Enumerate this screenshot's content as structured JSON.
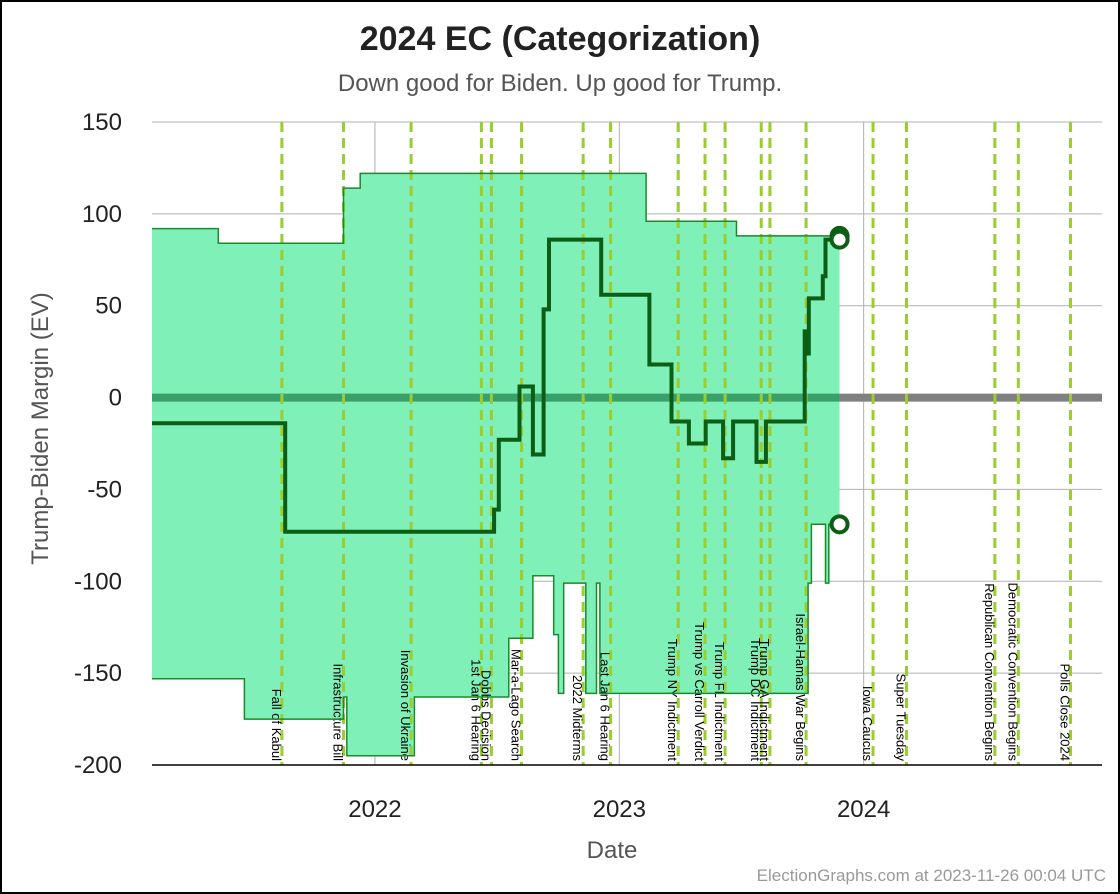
{
  "page": {
    "title": "2024 EC (Categorization)",
    "subtitle": "Down good for Biden. Up good for Trump.",
    "credit": "ElectionGraphs.com at 2023-11-26 00:04 UTC"
  },
  "chart_data": {
    "type": "line",
    "title": "2024 EC (Categorization)",
    "subtitle": "Down good for Biden. Up good for Trump.",
    "xlabel": "Date",
    "ylabel": "Trump-Biden Margin (EV)",
    "xlim": [
      "2021-02-02",
      "2024-12-22"
    ],
    "ylim": [
      -200,
      150
    ],
    "x_ticks": [
      {
        "label": "2022",
        "x": "2022-01-01"
      },
      {
        "label": "2023",
        "x": "2023-01-01"
      },
      {
        "label": "2024",
        "x": "2024-01-01"
      }
    ],
    "y_ticks": [
      150,
      100,
      50,
      0,
      -50,
      -100,
      -150,
      -200
    ],
    "grid": true,
    "zero_line_color": "#808080",
    "colors": {
      "band_fill": "#7ff0b8",
      "band_edge": "#1a8a2a",
      "center_line": "#0b5e14",
      "event_line": "#9acd32",
      "grid": "#b0b0b0"
    },
    "series": [
      {
        "role": "upper-bound",
        "points": [
          [
            "2021-02-02",
            92
          ],
          [
            "2021-05-12",
            92
          ],
          [
            "2021-05-12",
            84
          ],
          [
            "2021-11-15",
            84
          ],
          [
            "2021-11-15",
            114
          ],
          [
            "2021-12-10",
            114
          ],
          [
            "2021-12-10",
            122
          ],
          [
            "2023-02-10",
            122
          ],
          [
            "2023-02-10",
            96
          ],
          [
            "2023-06-25",
            96
          ],
          [
            "2023-06-25",
            88
          ],
          [
            "2023-11-26",
            88
          ]
        ]
      },
      {
        "role": "center",
        "points": [
          [
            "2021-02-02",
            -14
          ],
          [
            "2021-08-20",
            -14
          ],
          [
            "2021-08-20",
            -73
          ],
          [
            "2022-06-28",
            -73
          ],
          [
            "2022-06-28",
            -61
          ],
          [
            "2022-07-05",
            -61
          ],
          [
            "2022-07-05",
            -23
          ],
          [
            "2022-08-05",
            -23
          ],
          [
            "2022-08-05",
            6
          ],
          [
            "2022-08-25",
            6
          ],
          [
            "2022-08-25",
            -31
          ],
          [
            "2022-09-10",
            -31
          ],
          [
            "2022-09-10",
            48
          ],
          [
            "2022-09-18",
            48
          ],
          [
            "2022-09-18",
            86
          ],
          [
            "2022-12-05",
            86
          ],
          [
            "2022-12-05",
            56
          ],
          [
            "2023-02-15",
            56
          ],
          [
            "2023-02-15",
            18
          ],
          [
            "2023-03-20",
            18
          ],
          [
            "2023-03-20",
            -13
          ],
          [
            "2023-04-15",
            -13
          ],
          [
            "2023-04-15",
            -25
          ],
          [
            "2023-05-10",
            -25
          ],
          [
            "2023-05-10",
            -13
          ],
          [
            "2023-06-05",
            -13
          ],
          [
            "2023-06-05",
            -33
          ],
          [
            "2023-06-20",
            -33
          ],
          [
            "2023-06-20",
            -13
          ],
          [
            "2023-07-25",
            -13
          ],
          [
            "2023-07-25",
            -35
          ],
          [
            "2023-08-08",
            -35
          ],
          [
            "2023-08-08",
            -13
          ],
          [
            "2023-10-05",
            -13
          ],
          [
            "2023-10-05",
            36
          ],
          [
            "2023-10-08",
            36
          ],
          [
            "2023-10-08",
            24
          ],
          [
            "2023-10-11",
            24
          ],
          [
            "2023-10-11",
            54
          ],
          [
            "2023-11-01",
            54
          ],
          [
            "2023-11-01",
            66
          ],
          [
            "2023-11-05",
            66
          ],
          [
            "2023-11-05",
            86
          ],
          [
            "2023-11-26",
            86
          ]
        ]
      },
      {
        "role": "lower-bound",
        "points": [
          [
            "2021-02-02",
            -153
          ],
          [
            "2021-06-20",
            -153
          ],
          [
            "2021-06-20",
            -175
          ],
          [
            "2021-11-15",
            -175
          ],
          [
            "2021-11-15",
            -163
          ],
          [
            "2021-11-20",
            -163
          ],
          [
            "2021-11-20",
            -195
          ],
          [
            "2022-03-01",
            -195
          ],
          [
            "2022-03-01",
            -163
          ],
          [
            "2022-07-20",
            -163
          ],
          [
            "2022-07-20",
            -131
          ],
          [
            "2022-08-25",
            -131
          ],
          [
            "2022-08-25",
            -97
          ],
          [
            "2022-09-25",
            -97
          ],
          [
            "2022-09-25",
            -129
          ],
          [
            "2022-10-02",
            -129
          ],
          [
            "2022-10-02",
            -161
          ],
          [
            "2022-10-10",
            -161
          ],
          [
            "2022-10-10",
            -101
          ],
          [
            "2022-11-12",
            -101
          ],
          [
            "2022-11-12",
            -161
          ],
          [
            "2022-11-28",
            -161
          ],
          [
            "2022-11-28",
            -101
          ],
          [
            "2022-12-03",
            -101
          ],
          [
            "2022-12-03",
            -161
          ],
          [
            "2023-10-10",
            -161
          ],
          [
            "2023-10-10",
            -101
          ],
          [
            "2023-10-15",
            -101
          ],
          [
            "2023-10-15",
            -69
          ],
          [
            "2023-11-05",
            -69
          ],
          [
            "2023-11-05",
            -101
          ],
          [
            "2023-11-10",
            -101
          ],
          [
            "2023-11-10",
            -69
          ],
          [
            "2023-11-26",
            -69
          ]
        ]
      }
    ],
    "markers": [
      {
        "x": "2023-11-26",
        "y": 88
      },
      {
        "x": "2023-11-26",
        "y": 86
      },
      {
        "x": "2023-11-26",
        "y": -69
      }
    ],
    "projection": {
      "x0": "2023-11-26",
      "x1": "2024-12-22",
      "y": 0
    },
    "events": [
      {
        "label": "Fall of Kabul",
        "x": "2021-08-15"
      },
      {
        "label": "Infrastructure Bill",
        "x": "2021-11-15"
      },
      {
        "label": "Invasion of Ukraine",
        "x": "2022-02-24"
      },
      {
        "label": "1st Jan 6 Hearing",
        "x": "2022-06-09"
      },
      {
        "label": "Dobbs Decision",
        "x": "2022-06-24"
      },
      {
        "label": "Mar-a-Lago Search",
        "x": "2022-08-08"
      },
      {
        "label": "2022 Midterms",
        "x": "2022-11-08"
      },
      {
        "label": "Last Jan 6 Hearing",
        "x": "2022-12-19"
      },
      {
        "label": "Trump NY Indictment",
        "x": "2023-03-30"
      },
      {
        "label": "Trump vs Carroll Verdict",
        "x": "2023-05-09"
      },
      {
        "label": "Trump FL Indictment",
        "x": "2023-06-08"
      },
      {
        "label": "Trump DC Indictment",
        "x": "2023-08-01"
      },
      {
        "label": "Trump GA Indictment",
        "x": "2023-08-14"
      },
      {
        "label": "Israel-Hamas War Begins",
        "x": "2023-10-07"
      },
      {
        "label": "Iowa Caucus",
        "x": "2024-01-15"
      },
      {
        "label": "Super Tuesday",
        "x": "2024-03-05"
      },
      {
        "label": "Republican Convention Begins",
        "x": "2024-07-15"
      },
      {
        "label": "Democratic Convention Begins",
        "x": "2024-08-19"
      },
      {
        "label": "Polls Close 2024",
        "x": "2024-11-05"
      }
    ]
  }
}
